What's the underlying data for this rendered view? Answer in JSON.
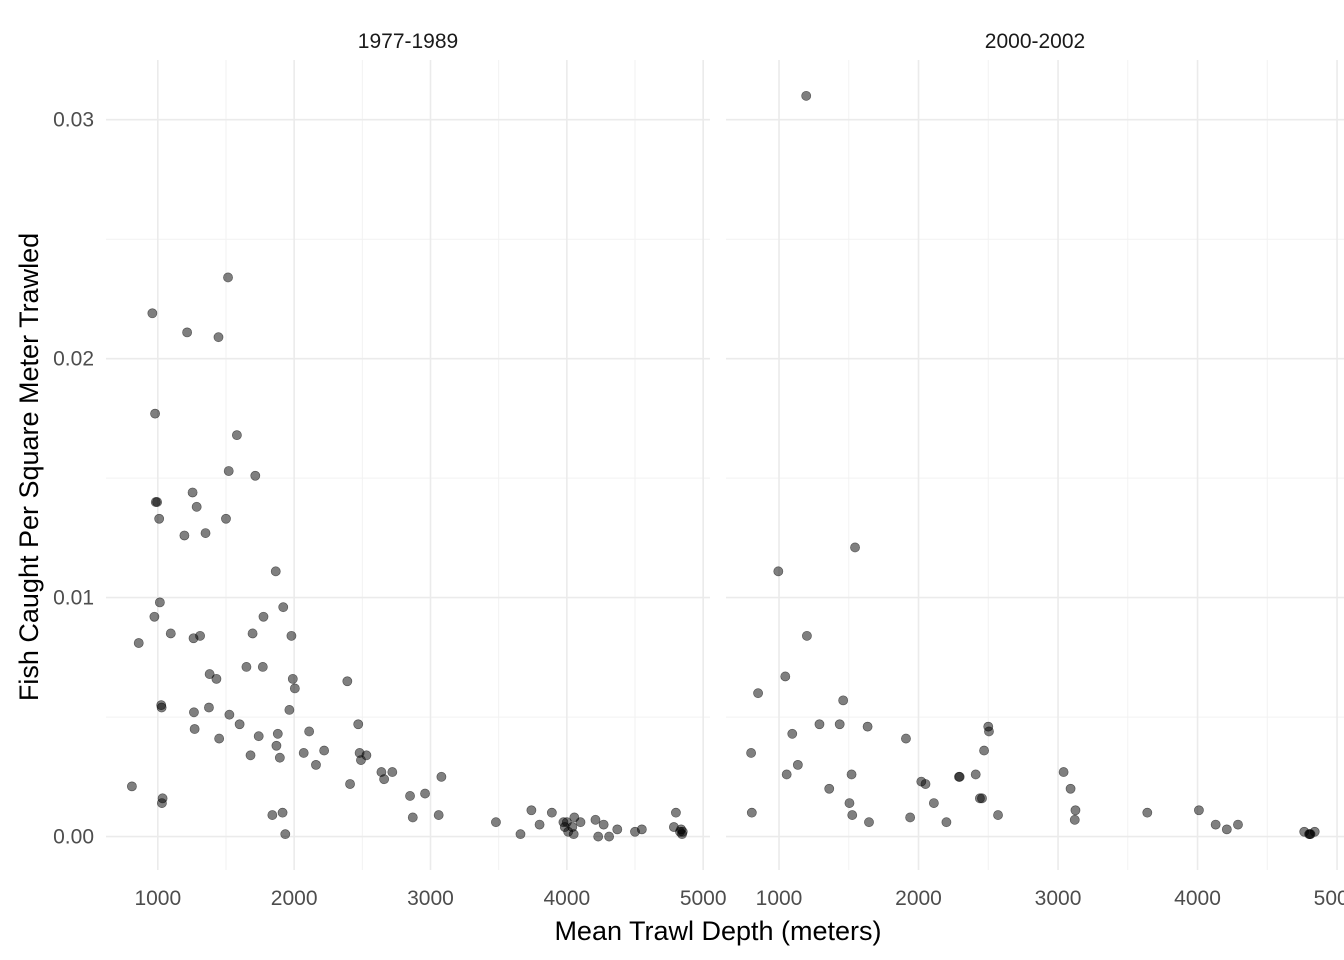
{
  "chart_data": {
    "type": "scatter",
    "xlabel": "Mean Trawl Depth (meters)",
    "ylabel": "Fish Caught Per Square Meter Trawled",
    "xlim": [
      620,
      5050
    ],
    "ylim": [
      -0.0014,
      0.0325
    ],
    "x_ticks": [
      1000,
      2000,
      3000,
      4000,
      5000
    ],
    "x_tick_labels": [
      "1000",
      "2000",
      "3000",
      "4000",
      "5000"
    ],
    "y_ticks": [
      0,
      0.01,
      0.02,
      0.03
    ],
    "y_tick_labels": [
      "0.00",
      "0.01",
      "0.02",
      "0.03"
    ],
    "grid": true,
    "panels": [
      {
        "title": "1977-1989",
        "points": [
          [
            810,
            0.0021
          ],
          [
            860,
            0.0081
          ],
          [
            960,
            0.0219
          ],
          [
            975,
            0.0092
          ],
          [
            980,
            0.0177
          ],
          [
            985,
            0.014
          ],
          [
            995,
            0.014
          ],
          [
            1010,
            0.0133
          ],
          [
            1015,
            0.0098
          ],
          [
            1025,
            0.0055
          ],
          [
            1028,
            0.0054
          ],
          [
            1030,
            0.0014
          ],
          [
            1035,
            0.0016
          ],
          [
            1095,
            0.0085
          ],
          [
            1195,
            0.0126
          ],
          [
            1215,
            0.0211
          ],
          [
            1255,
            0.0144
          ],
          [
            1262,
            0.0083
          ],
          [
            1265,
            0.0052
          ],
          [
            1270,
            0.0045
          ],
          [
            1285,
            0.0138
          ],
          [
            1310,
            0.0084
          ],
          [
            1350,
            0.0127
          ],
          [
            1375,
            0.0054
          ],
          [
            1380,
            0.0068
          ],
          [
            1430,
            0.0066
          ],
          [
            1445,
            0.0209
          ],
          [
            1450,
            0.0041
          ],
          [
            1500,
            0.0133
          ],
          [
            1515,
            0.0234
          ],
          [
            1520,
            0.0153
          ],
          [
            1525,
            0.0051
          ],
          [
            1580,
            0.0168
          ],
          [
            1600,
            0.0047
          ],
          [
            1650,
            0.0071
          ],
          [
            1680,
            0.0034
          ],
          [
            1695,
            0.0085
          ],
          [
            1715,
            0.0151
          ],
          [
            1740,
            0.0042
          ],
          [
            1770,
            0.0071
          ],
          [
            1775,
            0.0092
          ],
          [
            1840,
            0.0009
          ],
          [
            1865,
            0.0111
          ],
          [
            1870,
            0.0038
          ],
          [
            1880,
            0.0043
          ],
          [
            1895,
            0.0033
          ],
          [
            1915,
            0.001
          ],
          [
            1920,
            0.0096
          ],
          [
            1935,
            0.0001
          ],
          [
            1965,
            0.0053
          ],
          [
            1980,
            0.0084
          ],
          [
            1990,
            0.0066
          ],
          [
            2005,
            0.0062
          ],
          [
            2070,
            0.0035
          ],
          [
            2110,
            0.0044
          ],
          [
            2160,
            0.003
          ],
          [
            2220,
            0.0036
          ],
          [
            2390,
            0.0065
          ],
          [
            2410,
            0.0022
          ],
          [
            2470,
            0.0047
          ],
          [
            2480,
            0.0035
          ],
          [
            2490,
            0.0032
          ],
          [
            2530,
            0.0034
          ],
          [
            2640,
            0.0027
          ],
          [
            2660,
            0.0024
          ],
          [
            2720,
            0.0027
          ],
          [
            2850,
            0.0017
          ],
          [
            2870,
            0.0008
          ],
          [
            2960,
            0.0018
          ],
          [
            3060,
            0.0009
          ],
          [
            3080,
            0.0025
          ],
          [
            3480,
            0.0006
          ],
          [
            3660,
            0.0001
          ],
          [
            3740,
            0.0011
          ],
          [
            3800,
            0.0005
          ],
          [
            3890,
            0.001
          ],
          [
            3975,
            0.0006
          ],
          [
            3985,
            0.0004
          ],
          [
            4000,
            0.0006
          ],
          [
            4010,
            0.0002
          ],
          [
            4040,
            0.0004
          ],
          [
            4050,
            0.0001
          ],
          [
            4055,
            0.0008
          ],
          [
            4100,
            0.0006
          ],
          [
            4210,
            0.0007
          ],
          [
            4230,
            0.0
          ],
          [
            4270,
            0.0005
          ],
          [
            4310,
            0.0
          ],
          [
            4370,
            0.0003
          ],
          [
            4500,
            0.0002
          ],
          [
            4550,
            0.0003
          ],
          [
            4785,
            0.0004
          ],
          [
            4800,
            0.001
          ],
          [
            4830,
            0.0002
          ],
          [
            4838,
            0.0003
          ],
          [
            4845,
            0.0001
          ],
          [
            4850,
            0.0002
          ]
        ]
      },
      {
        "title": "2000-2002",
        "points": [
          [
            800,
            0.0035
          ],
          [
            805,
            0.001
          ],
          [
            850,
            0.006
          ],
          [
            995,
            0.0111
          ],
          [
            1045,
            0.0067
          ],
          [
            1055,
            0.0026
          ],
          [
            1095,
            0.0043
          ],
          [
            1135,
            0.003
          ],
          [
            1195,
            0.031
          ],
          [
            1200,
            0.0084
          ],
          [
            1290,
            0.0047
          ],
          [
            1360,
            0.002
          ],
          [
            1435,
            0.0047
          ],
          [
            1460,
            0.0057
          ],
          [
            1505,
            0.0014
          ],
          [
            1520,
            0.0026
          ],
          [
            1525,
            0.0009
          ],
          [
            1545,
            0.0121
          ],
          [
            1635,
            0.0046
          ],
          [
            1645,
            0.0006
          ],
          [
            1910,
            0.0041
          ],
          [
            1940,
            0.0008
          ],
          [
            2020,
            0.0023
          ],
          [
            2050,
            0.0022
          ],
          [
            2110,
            0.0014
          ],
          [
            2200,
            0.0006
          ],
          [
            2290,
            0.0025
          ],
          [
            2295,
            0.0025
          ],
          [
            2410,
            0.0026
          ],
          [
            2440,
            0.0016
          ],
          [
            2455,
            0.0016
          ],
          [
            2470,
            0.0036
          ],
          [
            2500,
            0.0046
          ],
          [
            2505,
            0.0044
          ],
          [
            2570,
            0.0009
          ],
          [
            3040,
            0.0027
          ],
          [
            3090,
            0.002
          ],
          [
            3120,
            0.0007
          ],
          [
            3125,
            0.0011
          ],
          [
            3640,
            0.001
          ],
          [
            4010,
            0.0011
          ],
          [
            4130,
            0.0005
          ],
          [
            4210,
            0.0003
          ],
          [
            4290,
            0.0005
          ],
          [
            4765,
            0.0002
          ],
          [
            4800,
            0.0001
          ],
          [
            4805,
            0.0001
          ],
          [
            4810,
            0.0001
          ],
          [
            4840,
            0.0002
          ]
        ]
      }
    ]
  }
}
